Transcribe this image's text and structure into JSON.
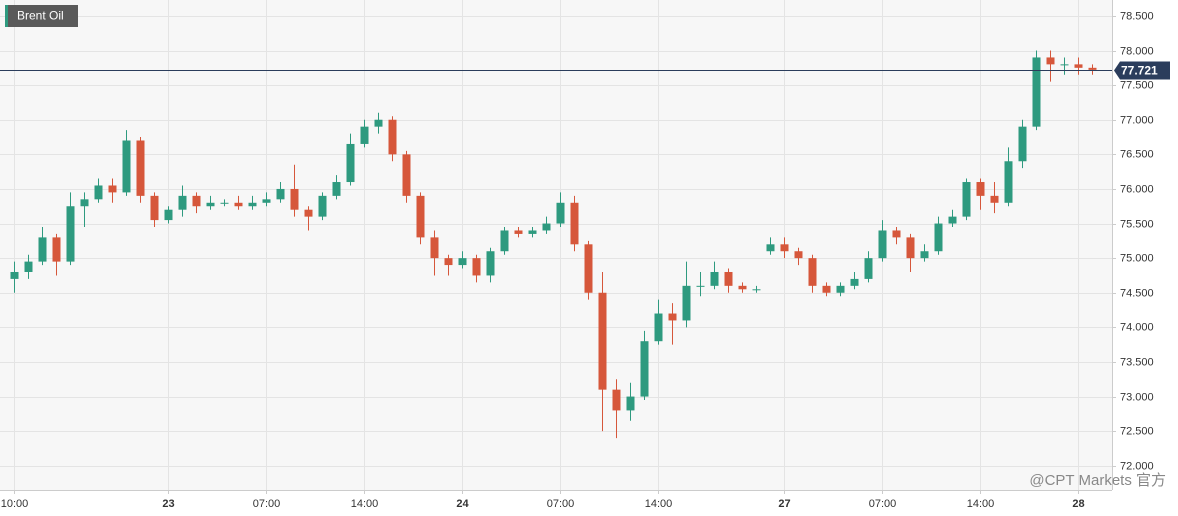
{
  "chart_data": {
    "type": "candlestick",
    "title": "Brent Oil",
    "watermark": "@CPT Markets 官方",
    "categories": [
      "10:00",
      null,
      null,
      null,
      null,
      null,
      null,
      null,
      null,
      null,
      null,
      "23",
      null,
      null,
      null,
      null,
      null,
      null,
      "07:00",
      null,
      null,
      null,
      null,
      null,
      null,
      "14:00",
      null,
      null,
      null,
      null,
      null,
      null,
      "24",
      null,
      null,
      null,
      null,
      null,
      null,
      "07:00",
      null,
      null,
      null,
      null,
      null,
      null,
      "14:00",
      null,
      null,
      null,
      null,
      null,
      null,
      null,
      null,
      "27",
      null,
      null,
      null,
      null,
      null,
      null,
      "07:00",
      null,
      null,
      null,
      null,
      null,
      null,
      "14:00",
      null,
      null,
      null,
      null,
      null,
      null,
      "28",
      null
    ],
    "open": [
      74.7,
      74.8,
      74.95,
      75.3,
      74.95,
      75.75,
      75.85,
      76.05,
      75.95,
      76.7,
      75.9,
      75.55,
      75.7,
      75.9,
      75.75,
      75.8,
      75.8,
      75.75,
      75.8,
      75.85,
      76.0,
      75.7,
      75.6,
      75.9,
      76.1,
      76.65,
      76.9,
      77.0,
      76.5,
      75.9,
      75.3,
      75.0,
      74.9,
      75.0,
      74.75,
      75.1,
      75.4,
      75.35,
      75.4,
      75.5,
      75.8,
      75.2,
      74.5,
      73.1,
      72.8,
      73.0,
      73.8,
      74.2,
      74.1,
      74.6,
      74.6,
      74.8,
      74.6,
      74.55,
      75.1,
      75.2,
      75.1,
      75.0,
      74.6,
      74.5,
      74.6,
      74.7,
      75.0,
      75.4,
      75.3,
      75.0,
      75.1,
      75.5,
      75.6,
      76.1,
      75.9,
      75.8,
      76.4,
      76.9,
      77.9,
      77.8,
      77.8,
      77.75
    ],
    "high": [
      74.95,
      75.05,
      75.45,
      75.35,
      75.95,
      75.95,
      76.15,
      76.15,
      76.85,
      76.75,
      75.95,
      75.75,
      76.05,
      75.95,
      75.9,
      75.85,
      75.9,
      75.9,
      75.95,
      76.1,
      76.35,
      75.75,
      75.95,
      76.2,
      76.8,
      77.0,
      77.1,
      77.05,
      76.55,
      75.95,
      75.4,
      75.05,
      75.1,
      75.05,
      75.15,
      75.45,
      75.45,
      75.45,
      75.6,
      75.95,
      75.9,
      75.25,
      74.8,
      73.25,
      73.2,
      73.95,
      74.4,
      74.35,
      74.95,
      74.8,
      74.95,
      74.85,
      74.65,
      74.6,
      75.3,
      75.3,
      75.15,
      75.05,
      74.65,
      74.65,
      74.8,
      75.1,
      75.55,
      75.45,
      75.35,
      75.2,
      75.6,
      75.7,
      76.15,
      76.15,
      76.1,
      76.6,
      77.0,
      78.0,
      78.0,
      77.9,
      77.9,
      77.8
    ],
    "low": [
      74.5,
      74.7,
      74.9,
      74.75,
      74.9,
      75.45,
      75.8,
      75.8,
      75.9,
      75.8,
      75.45,
      75.5,
      75.6,
      75.65,
      75.7,
      75.75,
      75.7,
      75.7,
      75.75,
      75.8,
      75.6,
      75.4,
      75.55,
      75.85,
      76.05,
      76.6,
      76.8,
      76.4,
      75.8,
      75.2,
      74.75,
      74.75,
      74.85,
      74.65,
      74.65,
      75.05,
      75.3,
      75.3,
      75.35,
      75.45,
      75.1,
      74.4,
      72.5,
      72.4,
      72.65,
      72.95,
      73.75,
      73.75,
      74.0,
      74.45,
      74.55,
      74.5,
      74.5,
      74.5,
      75.05,
      75.0,
      74.9,
      74.5,
      74.45,
      74.45,
      74.55,
      74.65,
      74.95,
      75.2,
      74.8,
      74.95,
      75.05,
      75.45,
      75.55,
      75.7,
      75.65,
      75.75,
      76.3,
      76.85,
      77.55,
      77.65,
      77.65,
      77.65
    ],
    "close": [
      74.8,
      74.95,
      75.3,
      74.95,
      75.75,
      75.85,
      76.05,
      75.95,
      76.7,
      75.9,
      75.55,
      75.7,
      75.9,
      75.75,
      75.8,
      75.8,
      75.75,
      75.8,
      75.85,
      76.0,
      75.7,
      75.6,
      75.9,
      76.1,
      76.65,
      76.9,
      77.0,
      76.5,
      75.9,
      75.3,
      75.0,
      74.9,
      75.0,
      74.75,
      75.1,
      75.4,
      75.35,
      75.4,
      75.5,
      75.8,
      75.2,
      74.5,
      73.1,
      72.8,
      73.0,
      73.8,
      74.2,
      74.1,
      74.6,
      74.6,
      74.8,
      74.6,
      74.55,
      74.55,
      75.2,
      75.1,
      75.0,
      74.6,
      74.5,
      74.6,
      74.7,
      75.0,
      75.4,
      75.3,
      75.0,
      75.1,
      75.5,
      75.6,
      76.1,
      75.9,
      75.8,
      76.4,
      76.9,
      77.9,
      77.8,
      77.8,
      77.75,
      77.72
    ],
    "up_color": "#2e9a7f",
    "down_color": "#d6573b",
    "last_price": 77.721,
    "last_price_color": "#2b3d5c",
    "ylim": [
      71.65,
      78.73
    ],
    "yticks": [
      {
        "value": 72,
        "label": "72.000"
      },
      {
        "value": 72.5,
        "label": "72.500"
      },
      {
        "value": 73,
        "label": "73.000"
      },
      {
        "value": 73.5,
        "label": "73.500"
      },
      {
        "value": 74,
        "label": "74.000"
      },
      {
        "value": 74.5,
        "label": "74.500"
      },
      {
        "value": 75,
        "label": "75.000"
      },
      {
        "value": 75.5,
        "label": "75.500"
      },
      {
        "value": 76,
        "label": "76.000"
      },
      {
        "value": 76.5,
        "label": "76.500"
      },
      {
        "value": 77,
        "label": "77.000"
      },
      {
        "value": 77.5,
        "label": "77.500"
      },
      {
        "value": 78,
        "label": "78.000"
      },
      {
        "value": 78.5,
        "label": "78.500"
      }
    ],
    "grid": true
  }
}
